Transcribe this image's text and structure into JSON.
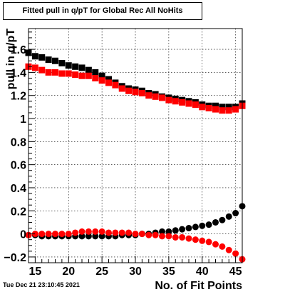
{
  "chart_data": {
    "type": "scatter",
    "title": "Fitted pull in q/pT for Global Rec All NoHits",
    "xlabel": "No. of Fit Points",
    "ylabel": "pull in q/pT",
    "xlim": [
      14,
      46
    ],
    "ylim": [
      -0.25,
      1.78
    ],
    "xticks": [
      15,
      20,
      25,
      30,
      35,
      40,
      45
    ],
    "yticks": [
      -0.2,
      0,
      0.2,
      0.4,
      0.6,
      0.8,
      1,
      1.2,
      1.4,
      1.6
    ],
    "ytick_labels": [
      "−0.2",
      "0",
      "0.2",
      "0.4",
      "0.6",
      "0.8",
      "1",
      "1.2",
      "1.4",
      "1.6"
    ],
    "grid": true,
    "x": [
      14,
      15,
      16,
      17,
      18,
      19,
      20,
      21,
      22,
      23,
      24,
      25,
      26,
      27,
      28,
      29,
      30,
      31,
      32,
      33,
      34,
      35,
      36,
      37,
      38,
      39,
      40,
      41,
      42,
      43,
      44,
      45,
      46
    ],
    "series": [
      {
        "marker": "square",
        "color": "#000000",
        "values": [
          1.57,
          1.54,
          1.53,
          1.51,
          1.5,
          1.48,
          1.46,
          1.45,
          1.44,
          1.42,
          1.4,
          1.37,
          1.34,
          1.31,
          1.28,
          1.26,
          1.25,
          1.24,
          1.22,
          1.21,
          1.19,
          1.18,
          1.17,
          1.16,
          1.15,
          1.14,
          1.12,
          1.11,
          1.11,
          1.1,
          1.1,
          1.1,
          1.13
        ]
      },
      {
        "marker": "square",
        "color": "#ff0000",
        "values": [
          1.45,
          1.44,
          1.42,
          1.4,
          1.4,
          1.39,
          1.39,
          1.38,
          1.37,
          1.37,
          1.35,
          1.33,
          1.31,
          1.29,
          1.26,
          1.24,
          1.23,
          1.22,
          1.2,
          1.19,
          1.18,
          1.16,
          1.15,
          1.14,
          1.13,
          1.12,
          1.1,
          1.09,
          1.08,
          1.07,
          1.07,
          1.08,
          1.11
        ]
      },
      {
        "marker": "circle",
        "color": "#000000",
        "values": [
          -0.01,
          -0.01,
          -0.02,
          -0.02,
          -0.02,
          -0.02,
          -0.02,
          -0.02,
          -0.02,
          -0.02,
          -0.02,
          -0.02,
          -0.02,
          -0.02,
          -0.01,
          -0.01,
          -0.01,
          0.0,
          0.0,
          0.01,
          0.02,
          0.02,
          0.03,
          0.04,
          0.05,
          0.06,
          0.07,
          0.08,
          0.1,
          0.12,
          0.15,
          0.18,
          0.24
        ]
      },
      {
        "marker": "circle",
        "color": "#ff0000",
        "values": [
          -0.01,
          0.0,
          0.0,
          0.0,
          0.0,
          0.0,
          0.0,
          0.01,
          0.02,
          0.02,
          0.02,
          0.02,
          0.01,
          0.01,
          0.01,
          0.01,
          0.0,
          0.0,
          -0.01,
          -0.01,
          -0.02,
          -0.02,
          -0.03,
          -0.03,
          -0.04,
          -0.05,
          -0.06,
          -0.07,
          -0.09,
          -0.11,
          -0.14,
          -0.17,
          -0.22
        ]
      }
    ]
  },
  "timestamp": "Tue Dec 21 23:10:45 2021"
}
